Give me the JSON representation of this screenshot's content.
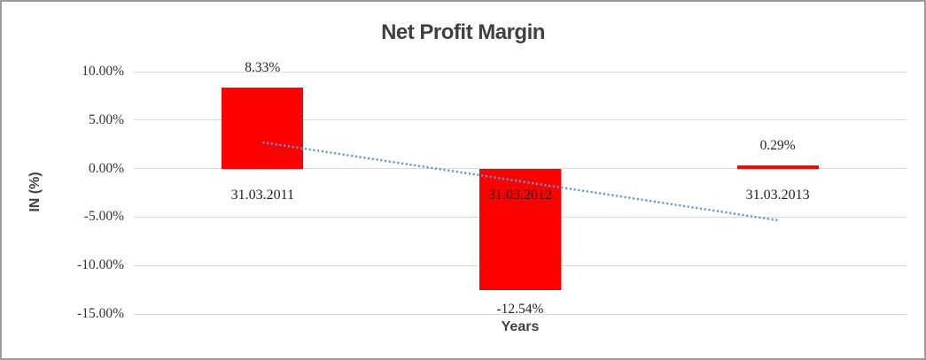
{
  "window": {
    "background": "#ffffff",
    "border_color": "#9b9b9b"
  },
  "chart_data": {
    "type": "bar",
    "title": "Net Profit Margin",
    "xlabel": "Years",
    "ylabel": "IN (%)",
    "categories": [
      "31.03.2011",
      "31.03.2012",
      "31.03.2013"
    ],
    "values": [
      8.33,
      -12.54,
      0.29
    ],
    "data_labels": [
      "8.33%",
      "-12.54%",
      "0.29%"
    ],
    "bar_color": "#ff0000",
    "ylim": [
      -15,
      10
    ],
    "ytick_step": 5,
    "ytick_labels": [
      "10.00%",
      "5.00%",
      "0.00%",
      "-5.00%",
      "-10.00%",
      "-15.00%"
    ],
    "grid": true,
    "gridline_color": "#d9d9d9",
    "legend": "none",
    "text_colors": {
      "title": "#404040",
      "axis_titles": "#404040",
      "tick_labels": "#333333",
      "data_labels": "#262626"
    },
    "trendline": {
      "type": "linear",
      "style": "dotted",
      "color": "#5b9bd5",
      "start_value": 2.71,
      "end_value": -5.33
    }
  }
}
